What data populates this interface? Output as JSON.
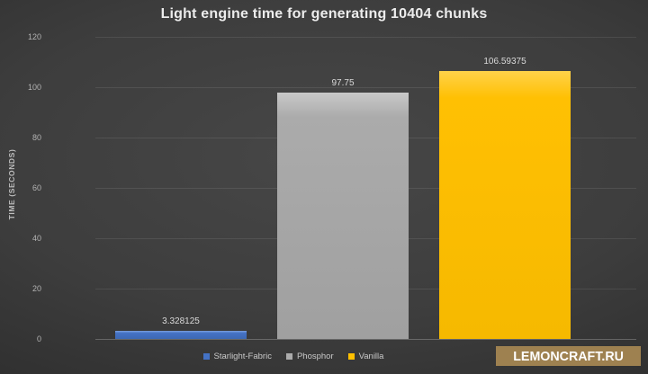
{
  "chart_data": {
    "type": "bar",
    "title": "Light engine time for generating 10404 chunks",
    "xlabel": "",
    "ylabel": "TIME (SECONDS)",
    "categories": [
      "Starlight-Fabric",
      "Phosphor",
      "Vanilla"
    ],
    "values": [
      3.328125,
      97.75,
      106.59375
    ],
    "value_labels": [
      "3.328125",
      "97.75",
      "106.59375"
    ],
    "bar_colors": [
      "#4472c4",
      "#ababab",
      "#ffc000"
    ],
    "ylim": [
      0,
      120
    ],
    "yticks": [
      0,
      20,
      40,
      60,
      80,
      100,
      120
    ],
    "grid": true,
    "legend_position": "bottom"
  },
  "watermark": {
    "text": "LEMONCRAFT.RU",
    "bg_color": "#9e8150"
  }
}
